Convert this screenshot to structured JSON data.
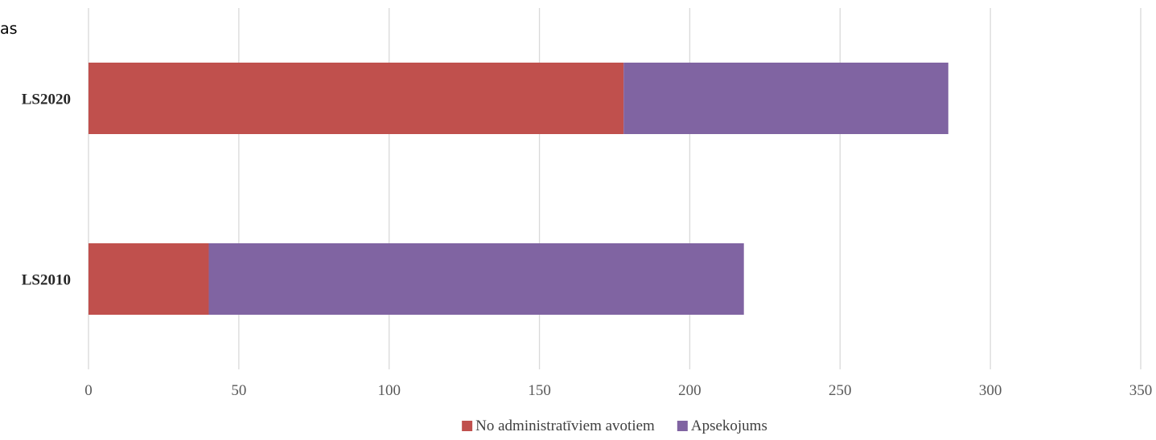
{
  "corner_text": "as",
  "chart_data": {
    "type": "bar",
    "orientation": "horizontal",
    "stacked": true,
    "categories": [
      "LS2020",
      "LS2010"
    ],
    "series": [
      {
        "name": "No administratīviem avotiem",
        "color": "#C0504D",
        "values": [
          178,
          40
        ]
      },
      {
        "name": "Apsekojums",
        "color": "#8064A2",
        "values": [
          108,
          178
        ]
      }
    ],
    "xlim": [
      0,
      350
    ],
    "xticks": [
      0,
      50,
      100,
      150,
      200,
      250,
      300,
      350
    ],
    "grid": true,
    "legend": "bottom-center"
  }
}
